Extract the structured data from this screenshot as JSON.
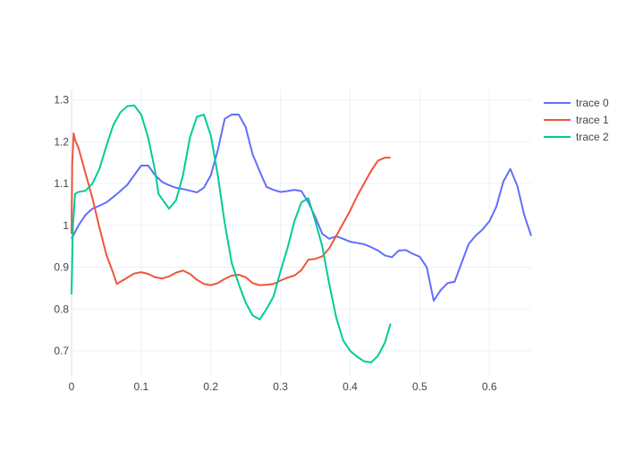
{
  "chart_data": {
    "type": "line",
    "title": "",
    "xlabel": "",
    "ylabel": "",
    "xlim": [
      0,
      0.66
    ],
    "ylim": [
      0.64,
      1.325
    ],
    "grid": true,
    "legend_position": "top-right",
    "x_ticks": [
      {
        "value": 0,
        "label": "0"
      },
      {
        "value": 0.1,
        "label": "0.1"
      },
      {
        "value": 0.2,
        "label": "0.2"
      },
      {
        "value": 0.3,
        "label": "0.3"
      },
      {
        "value": 0.4,
        "label": "0.4"
      },
      {
        "value": 0.5,
        "label": "0.5"
      },
      {
        "value": 0.6,
        "label": "0.6"
      }
    ],
    "y_ticks": [
      {
        "value": 0.7,
        "label": "0.7"
      },
      {
        "value": 0.8,
        "label": "0.8"
      },
      {
        "value": 0.9,
        "label": "0.9"
      },
      {
        "value": 1.0,
        "label": "1"
      },
      {
        "value": 1.1,
        "label": "1.1"
      },
      {
        "value": 1.2,
        "label": "1.2"
      },
      {
        "value": 1.3,
        "label": "1.3"
      }
    ],
    "series": [
      {
        "name": "trace 0",
        "color": "#636efa",
        "points": [
          [
            0,
            0.968
          ],
          [
            0.01,
            1.0
          ],
          [
            0.02,
            1.025
          ],
          [
            0.03,
            1.04
          ],
          [
            0.04,
            1.047
          ],
          [
            0.05,
            1.055
          ],
          [
            0.06,
            1.068
          ],
          [
            0.07,
            1.082
          ],
          [
            0.08,
            1.097
          ],
          [
            0.09,
            1.12
          ],
          [
            0.1,
            1.143
          ],
          [
            0.11,
            1.143
          ],
          [
            0.12,
            1.12
          ],
          [
            0.13,
            1.104
          ],
          [
            0.14,
            1.096
          ],
          [
            0.15,
            1.09
          ],
          [
            0.16,
            1.087
          ],
          [
            0.17,
            1.083
          ],
          [
            0.18,
            1.079
          ],
          [
            0.19,
            1.09
          ],
          [
            0.2,
            1.12
          ],
          [
            0.21,
            1.18
          ],
          [
            0.22,
            1.255
          ],
          [
            0.23,
            1.265
          ],
          [
            0.24,
            1.265
          ],
          [
            0.25,
            1.235
          ],
          [
            0.26,
            1.17
          ],
          [
            0.27,
            1.13
          ],
          [
            0.28,
            1.092
          ],
          [
            0.29,
            1.085
          ],
          [
            0.3,
            1.08
          ],
          [
            0.31,
            1.082
          ],
          [
            0.32,
            1.085
          ],
          [
            0.33,
            1.082
          ],
          [
            0.34,
            1.055
          ],
          [
            0.35,
            1.02
          ],
          [
            0.36,
            0.98
          ],
          [
            0.37,
            0.968
          ],
          [
            0.38,
            0.974
          ],
          [
            0.39,
            0.968
          ],
          [
            0.4,
            0.961
          ],
          [
            0.41,
            0.958
          ],
          [
            0.42,
            0.955
          ],
          [
            0.43,
            0.948
          ],
          [
            0.44,
            0.94
          ],
          [
            0.45,
            0.928
          ],
          [
            0.46,
            0.924
          ],
          [
            0.47,
            0.94
          ],
          [
            0.48,
            0.941
          ],
          [
            0.49,
            0.932
          ],
          [
            0.5,
            0.925
          ],
          [
            0.51,
            0.9
          ],
          [
            0.52,
            0.82
          ],
          [
            0.53,
            0.845
          ],
          [
            0.54,
            0.862
          ],
          [
            0.55,
            0.865
          ],
          [
            0.56,
            0.91
          ],
          [
            0.57,
            0.955
          ],
          [
            0.58,
            0.975
          ],
          [
            0.59,
            0.99
          ],
          [
            0.6,
            1.01
          ],
          [
            0.61,
            1.045
          ],
          [
            0.62,
            1.105
          ],
          [
            0.63,
            1.135
          ],
          [
            0.64,
            1.095
          ],
          [
            0.65,
            1.025
          ],
          [
            0.66,
            0.975
          ]
        ]
      },
      {
        "name": "trace 1",
        "color": "#ef553b",
        "points": [
          [
            0,
            0.98
          ],
          [
            0.001,
            1.15
          ],
          [
            0.003,
            1.22
          ],
          [
            0.005,
            1.205
          ],
          [
            0.01,
            1.185
          ],
          [
            0.02,
            1.125
          ],
          [
            0.03,
            1.065
          ],
          [
            0.04,
            0.995
          ],
          [
            0.05,
            0.93
          ],
          [
            0.06,
            0.885
          ],
          [
            0.065,
            0.86
          ],
          [
            0.07,
            0.865
          ],
          [
            0.08,
            0.875
          ],
          [
            0.09,
            0.885
          ],
          [
            0.1,
            0.888
          ],
          [
            0.11,
            0.884
          ],
          [
            0.12,
            0.876
          ],
          [
            0.13,
            0.873
          ],
          [
            0.14,
            0.878
          ],
          [
            0.15,
            0.887
          ],
          [
            0.16,
            0.892
          ],
          [
            0.17,
            0.884
          ],
          [
            0.18,
            0.87
          ],
          [
            0.19,
            0.86
          ],
          [
            0.2,
            0.857
          ],
          [
            0.21,
            0.862
          ],
          [
            0.22,
            0.872
          ],
          [
            0.23,
            0.88
          ],
          [
            0.24,
            0.882
          ],
          [
            0.25,
            0.876
          ],
          [
            0.26,
            0.862
          ],
          [
            0.27,
            0.857
          ],
          [
            0.28,
            0.858
          ],
          [
            0.29,
            0.86
          ],
          [
            0.3,
            0.868
          ],
          [
            0.31,
            0.875
          ],
          [
            0.32,
            0.88
          ],
          [
            0.33,
            0.893
          ],
          [
            0.34,
            0.918
          ],
          [
            0.35,
            0.92
          ],
          [
            0.36,
            0.926
          ],
          [
            0.37,
            0.945
          ],
          [
            0.38,
            0.975
          ],
          [
            0.39,
            1.005
          ],
          [
            0.4,
            1.035
          ],
          [
            0.41,
            1.07
          ],
          [
            0.42,
            1.1
          ],
          [
            0.43,
            1.13
          ],
          [
            0.44,
            1.155
          ],
          [
            0.45,
            1.162
          ],
          [
            0.458,
            1.162
          ]
        ]
      },
      {
        "name": "trace 2",
        "color": "#00cc96",
        "points": [
          [
            0,
            0.835
          ],
          [
            0.002,
            1.0
          ],
          [
            0.005,
            1.075
          ],
          [
            0.01,
            1.08
          ],
          [
            0.02,
            1.083
          ],
          [
            0.03,
            1.1
          ],
          [
            0.04,
            1.135
          ],
          [
            0.05,
            1.19
          ],
          [
            0.06,
            1.24
          ],
          [
            0.07,
            1.27
          ],
          [
            0.08,
            1.285
          ],
          [
            0.09,
            1.287
          ],
          [
            0.1,
            1.265
          ],
          [
            0.11,
            1.21
          ],
          [
            0.12,
            1.13
          ],
          [
            0.125,
            1.075
          ],
          [
            0.13,
            1.063
          ],
          [
            0.14,
            1.04
          ],
          [
            0.15,
            1.06
          ],
          [
            0.16,
            1.12
          ],
          [
            0.17,
            1.21
          ],
          [
            0.18,
            1.26
          ],
          [
            0.19,
            1.265
          ],
          [
            0.2,
            1.215
          ],
          [
            0.21,
            1.12
          ],
          [
            0.22,
            1.005
          ],
          [
            0.23,
            0.91
          ],
          [
            0.24,
            0.86
          ],
          [
            0.25,
            0.815
          ],
          [
            0.26,
            0.785
          ],
          [
            0.27,
            0.775
          ],
          [
            0.28,
            0.8
          ],
          [
            0.29,
            0.83
          ],
          [
            0.3,
            0.89
          ],
          [
            0.31,
            0.945
          ],
          [
            0.32,
            1.01
          ],
          [
            0.33,
            1.055
          ],
          [
            0.34,
            1.065
          ],
          [
            0.35,
            1.01
          ],
          [
            0.36,
            0.95
          ],
          [
            0.37,
            0.86
          ],
          [
            0.38,
            0.78
          ],
          [
            0.39,
            0.725
          ],
          [
            0.4,
            0.7
          ],
          [
            0.41,
            0.686
          ],
          [
            0.42,
            0.675
          ],
          [
            0.43,
            0.672
          ],
          [
            0.44,
            0.688
          ],
          [
            0.45,
            0.72
          ],
          [
            0.458,
            0.765
          ]
        ]
      }
    ]
  }
}
